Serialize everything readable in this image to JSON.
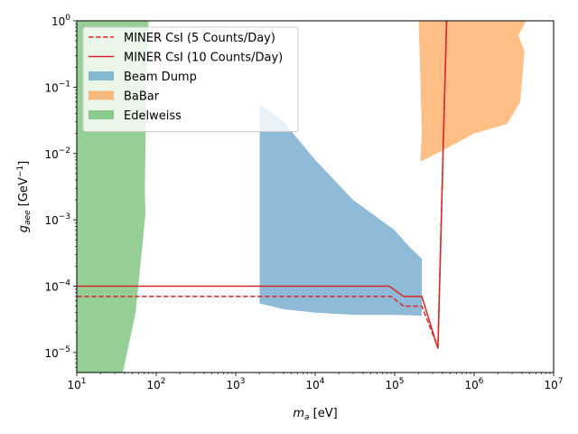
{
  "chart_data": {
    "type": "area",
    "xscale": "log",
    "yscale": "log",
    "xlim": [
      10,
      10000000
    ],
    "ylim": [
      5e-06,
      1
    ],
    "xlabel_main": "m",
    "xlabel_sub": "a",
    "xlabel_unit": " [eV]",
    "ylabel_main": "g",
    "ylabel_sub": "aee",
    "ylabel_unit_pre": " [GeV",
    "ylabel_unit_sup": "−1",
    "ylabel_unit_post": "]",
    "xticks": [
      {
        "value": 10,
        "base": "10",
        "exp": "1"
      },
      {
        "value": 100,
        "base": "10",
        "exp": "2"
      },
      {
        "value": 1000,
        "base": "10",
        "exp": "3"
      },
      {
        "value": 10000,
        "base": "10",
        "exp": "4"
      },
      {
        "value": 100000,
        "base": "10",
        "exp": "5"
      },
      {
        "value": 1000000,
        "base": "10",
        "exp": "6"
      },
      {
        "value": 10000000,
        "base": "10",
        "exp": "7"
      }
    ],
    "yticks": [
      {
        "value": 1e-05,
        "base": "10",
        "exp": "−5"
      },
      {
        "value": 0.0001,
        "base": "10",
        "exp": "−4"
      },
      {
        "value": 0.001,
        "base": "10",
        "exp": "−3"
      },
      {
        "value": 0.01,
        "base": "10",
        "exp": "−2"
      },
      {
        "value": 0.1,
        "base": "10",
        "exp": "−1"
      },
      {
        "value": 1,
        "base": "10",
        "exp": "0"
      }
    ],
    "grid": false,
    "legend_position": "upper-left",
    "regions": [
      {
        "name": "Beam Dump",
        "color": "#1f77b4",
        "alpha": 0.5,
        "points": [
          [
            2000,
            0.055
          ],
          [
            4000,
            0.03
          ],
          [
            10000,
            0.008
          ],
          [
            30000,
            0.002
          ],
          [
            100000,
            0.0007
          ],
          [
            150000,
            0.0004
          ],
          [
            220000,
            0.00026
          ],
          [
            220000,
            3.6e-05
          ],
          [
            100000,
            3.7e-05
          ],
          [
            30000,
            3.7e-05
          ],
          [
            10000,
            4e-05
          ],
          [
            4000,
            4.5e-05
          ],
          [
            2000,
            5.5e-05
          ]
        ]
      },
      {
        "name": "BaBar",
        "color": "#ff7f0e",
        "alpha": 0.5,
        "points": [
          [
            200000,
            1
          ],
          [
            4500000,
            1
          ],
          [
            3600000,
            0.6
          ],
          [
            4300000,
            0.35
          ],
          [
            3800000,
            0.06
          ],
          [
            2600000,
            0.028
          ],
          [
            1000000,
            0.02
          ],
          [
            450000,
            0.012
          ],
          [
            210000,
            0.0075
          ],
          [
            220000,
            0.02
          ],
          [
            210000,
            0.15
          ]
        ]
      },
      {
        "name": "Edelweiss",
        "color": "#2ca02c",
        "alpha": 0.5,
        "points": [
          [
            10,
            1
          ],
          [
            80,
            1
          ],
          [
            75,
            0.1
          ],
          [
            72,
            0.003
          ],
          [
            73,
            0.0012
          ],
          [
            55,
            4e-05
          ],
          [
            38,
            5e-06
          ],
          [
            10,
            5e-06
          ]
        ]
      }
    ],
    "series": [
      {
        "name": "MINER CsI (5 Counts/Day)",
        "color": "#d62728",
        "dash": "dashed",
        "x": [
          10,
          90000,
          130000,
          220000,
          350000,
          420000,
          450000
        ],
        "y": [
          7e-05,
          7e-05,
          5e-05,
          5e-05,
          1.2e-05,
          0.05,
          1
        ]
      },
      {
        "name": "MINER CsI (10 Counts/Day)",
        "color": "#d62728",
        "dash": "solid",
        "x": [
          10,
          85000,
          130000,
          220000,
          350000,
          450000
        ],
        "y": [
          0.0001,
          0.0001,
          7e-05,
          7e-05,
          1.15e-05,
          1
        ]
      }
    ]
  }
}
